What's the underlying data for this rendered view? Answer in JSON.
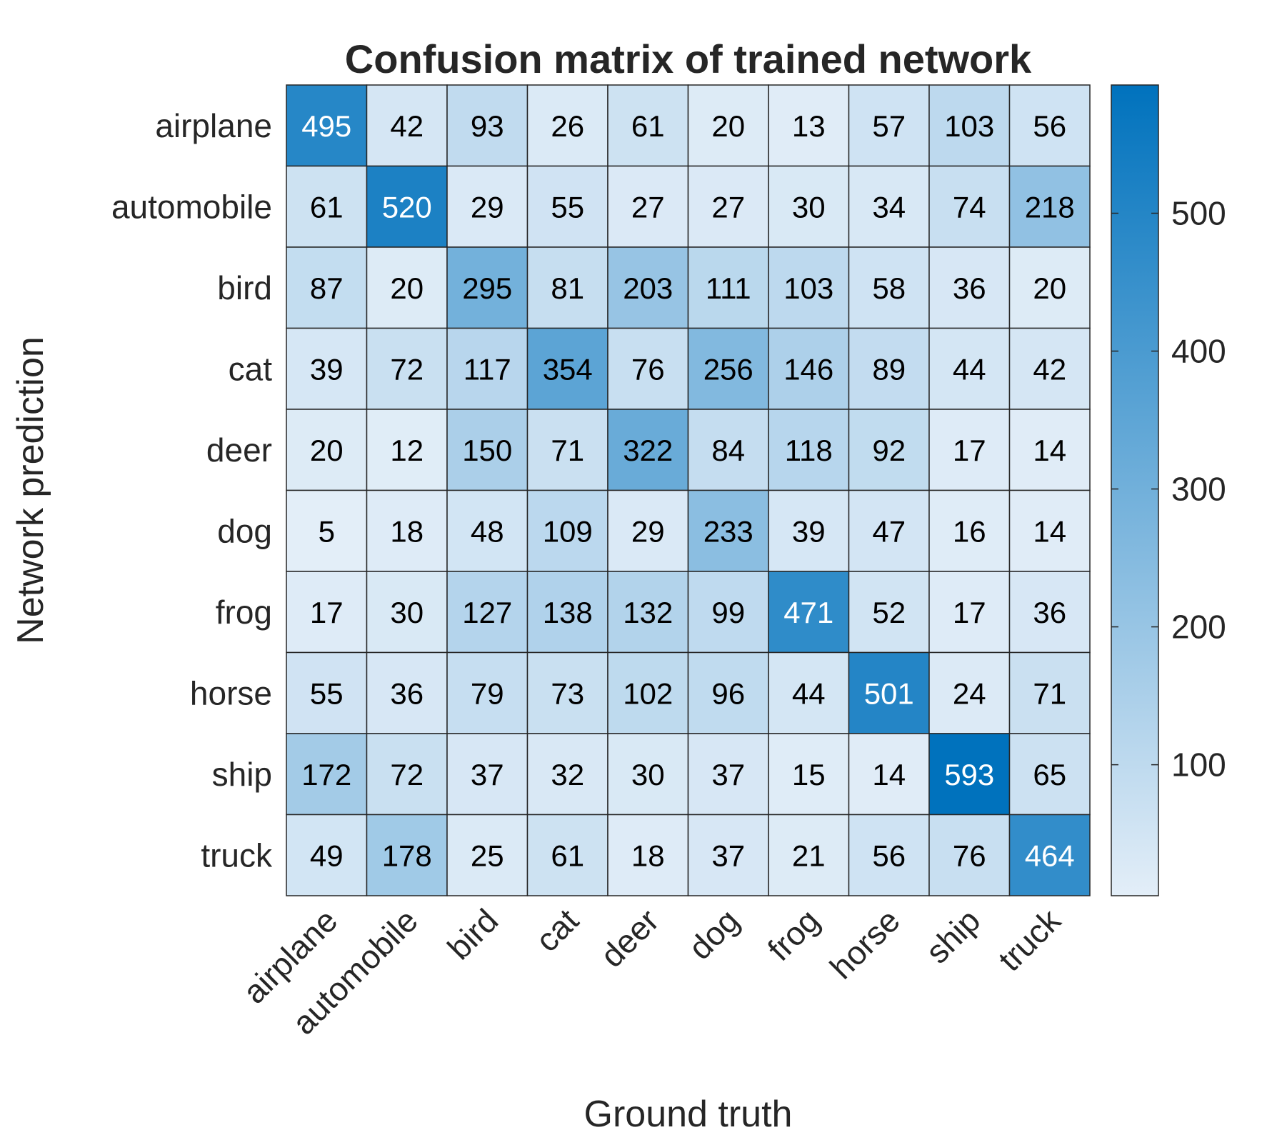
{
  "chart_data": {
    "type": "heatmap",
    "title": "Confusion matrix of trained network",
    "xlabel": "Ground truth",
    "ylabel": "Network prediction",
    "x_categories": [
      "airplane",
      "automobile",
      "bird",
      "cat",
      "deer",
      "dog",
      "frog",
      "horse",
      "ship",
      "truck"
    ],
    "y_categories": [
      "airplane",
      "automobile",
      "bird",
      "cat",
      "deer",
      "dog",
      "frog",
      "horse",
      "ship",
      "truck"
    ],
    "values": [
      [
        495,
        42,
        93,
        26,
        61,
        20,
        13,
        57,
        103,
        56
      ],
      [
        61,
        520,
        29,
        55,
        27,
        27,
        30,
        34,
        74,
        218
      ],
      [
        87,
        20,
        295,
        81,
        203,
        111,
        103,
        58,
        36,
        20
      ],
      [
        39,
        72,
        117,
        354,
        76,
        256,
        146,
        89,
        44,
        42
      ],
      [
        20,
        12,
        150,
        71,
        322,
        84,
        118,
        92,
        17,
        14
      ],
      [
        5,
        18,
        48,
        109,
        29,
        233,
        39,
        47,
        16,
        14
      ],
      [
        17,
        30,
        127,
        138,
        132,
        99,
        471,
        52,
        17,
        36
      ],
      [
        55,
        36,
        79,
        73,
        102,
        96,
        44,
        501,
        24,
        71
      ],
      [
        172,
        72,
        37,
        32,
        30,
        37,
        15,
        14,
        593,
        65
      ],
      [
        49,
        178,
        25,
        61,
        18,
        37,
        21,
        56,
        76,
        464
      ]
    ],
    "colorbar": {
      "range": [
        5,
        593
      ],
      "ticks": [
        100,
        200,
        300,
        400,
        500
      ],
      "color_low": "#e3eef8",
      "color_high": "#0072bd"
    },
    "grid": true,
    "legend": "colorbar-right"
  }
}
